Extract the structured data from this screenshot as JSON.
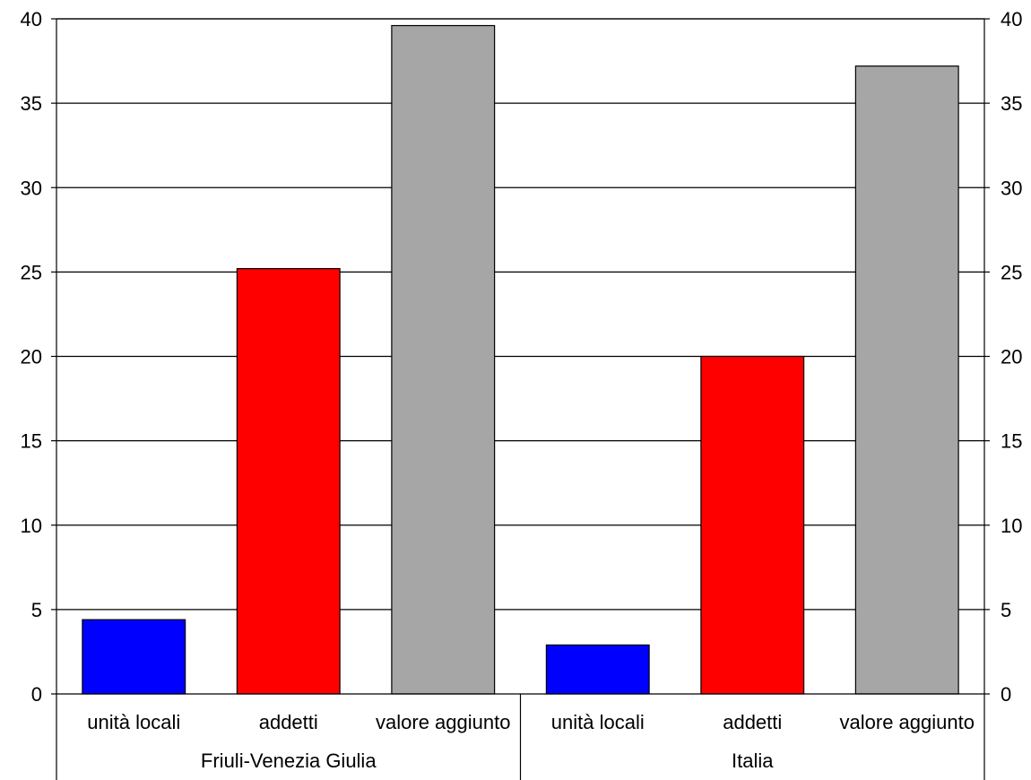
{
  "chart_data": {
    "type": "bar",
    "title": "",
    "xlabel": "",
    "ylabel": "",
    "ylim": [
      0,
      40
    ],
    "yticks": [
      "0",
      "5",
      "10",
      "15",
      "20",
      "25",
      "30",
      "35",
      "40"
    ],
    "grid": true,
    "groups": [
      {
        "name": "Friuli-Venezia Giulia",
        "bars": [
          {
            "category": "unità locali",
            "value": 4.4,
            "color": "#0000ff"
          },
          {
            "category": "addetti",
            "value": 25.2,
            "color": "#ff0000"
          },
          {
            "category": "valore aggiunto",
            "value": 39.6,
            "color": "#a6a6a6"
          }
        ]
      },
      {
        "name": "Italia",
        "bars": [
          {
            "category": "unità locali",
            "value": 2.9,
            "color": "#0000ff"
          },
          {
            "category": "addetti",
            "value": 20.0,
            "color": "#ff0000"
          },
          {
            "category": "valore aggiunto",
            "value": 37.2,
            "color": "#a6a6a6"
          }
        ]
      }
    ]
  }
}
